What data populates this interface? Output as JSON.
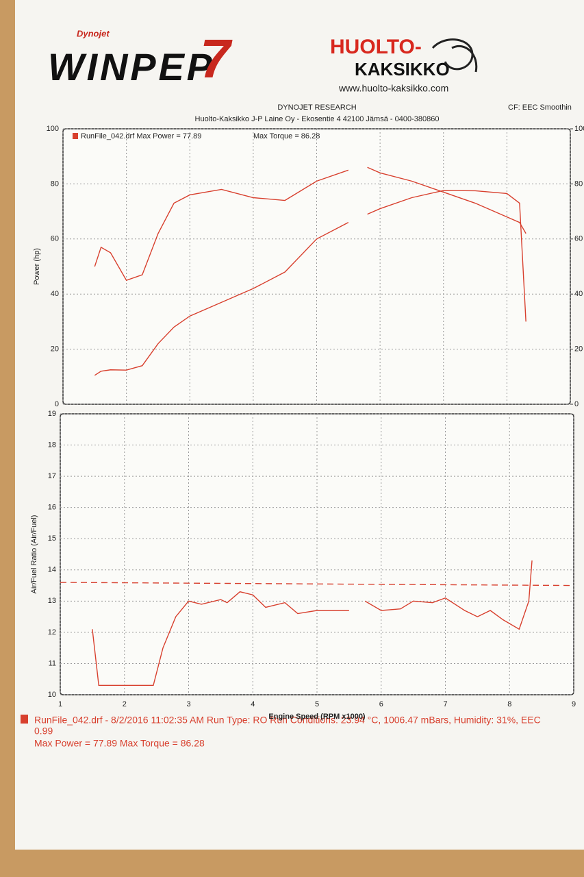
{
  "header": {
    "logo_brand": "Dynojet",
    "logo": "WINPEP",
    "logo_number": "7",
    "shop_red": "HUOLTO-",
    "shop_black": "KAKSIKKO",
    "url": "www.huolto-kaksikko.com",
    "company": "DYNOJET RESEARCH",
    "address": "Huolto-Kaksikko J-P Laine Oy - Ekosentie 4 42100 Jämsä - 0400-380860",
    "cf": "CF: EEC Smoothin"
  },
  "chart_data": [
    {
      "type": "line",
      "ylabel": "Power (hp)",
      "legend_text": "RunFile_042.drf Max Power = 77.89",
      "legend_text2": "Max Torque = 86.28",
      "x": [
        1.5,
        1.6,
        1.75,
        2,
        2.25,
        2.5,
        2.75,
        3,
        3.5,
        4,
        4.5,
        5,
        5.5,
        5.65,
        5.8,
        6,
        6.5,
        7,
        7.5,
        8,
        8.2,
        8.3
      ],
      "series": [
        {
          "color": "#d8402e",
          "values": [
            10.5,
            12,
            12.5,
            12.4,
            14,
            22,
            28,
            32,
            37,
            42,
            48,
            60,
            66,
            null,
            69,
            71,
            75,
            77.6,
            77.5,
            76.5,
            73,
            30
          ]
        },
        {
          "color": "#d8402e",
          "axis": "y2",
          "values": [
            50,
            57,
            55,
            45,
            47,
            62,
            73,
            76,
            78,
            75,
            74,
            81,
            85,
            null,
            86,
            84,
            81,
            77,
            73,
            68,
            66,
            62
          ]
        }
      ],
      "xlim": [
        1,
        9
      ],
      "xticks": [
        1,
        2,
        3,
        4,
        5,
        6,
        7,
        8,
        9
      ],
      "show_x_tick_labels": false,
      "ylim": [
        0,
        100
      ],
      "yticks": [
        0,
        20,
        40,
        60,
        80,
        100
      ],
      "y2lim": [
        0,
        100
      ],
      "y2ticks": [
        0,
        20,
        40,
        60,
        80,
        100
      ],
      "grid": true
    },
    {
      "type": "line",
      "ylabel": "Air/Fuel Ratio (Air/Fuel)",
      "xlabel": "Engine Speed (RPM x1000)",
      "x": [
        1.5,
        1.6,
        2,
        2.45,
        2.6,
        2.8,
        3,
        3.2,
        3.5,
        3.6,
        3.8,
        4,
        4.2,
        4.5,
        4.7,
        5,
        5.5,
        5.6,
        5.75,
        6,
        6.3,
        6.5,
        6.8,
        7,
        7.3,
        7.5,
        7.7,
        7.9,
        8.15,
        8.3,
        8.35
      ],
      "series": [
        {
          "color": "#d8402e",
          "values": [
            12.1,
            10.3,
            10.3,
            10.3,
            11.5,
            12.5,
            13.0,
            12.9,
            13.05,
            12.95,
            13.3,
            13.2,
            12.8,
            12.95,
            12.6,
            12.7,
            12.7,
            null,
            13.0,
            12.7,
            12.75,
            13.0,
            12.95,
            13.1,
            12.7,
            12.5,
            12.7,
            12.4,
            12.1,
            13.0,
            14.3
          ]
        },
        {
          "color": "#d8402e",
          "dashed": true,
          "x": [
            1,
            9
          ],
          "values": [
            13.6,
            13.5
          ]
        }
      ],
      "xlim": [
        1,
        9
      ],
      "xticks": [
        1,
        2,
        3,
        4,
        5,
        6,
        7,
        8,
        9
      ],
      "show_x_tick_labels": true,
      "ylim": [
        10,
        19
      ],
      "yticks": [
        10,
        11,
        12,
        13,
        14,
        15,
        16,
        17,
        18,
        19
      ],
      "grid": true
    }
  ],
  "footer": {
    "line1": "RunFile_042.drf - 8/2/2016 11:02:35 AM  Run Type: RO  Run Conditions: 23.94 °C, 1006.47 mBars,  Humidity: 31%, EEC",
    "line2": "0.99",
    "line3": "Max Power = 77.89  Max Torque = 86.28"
  }
}
